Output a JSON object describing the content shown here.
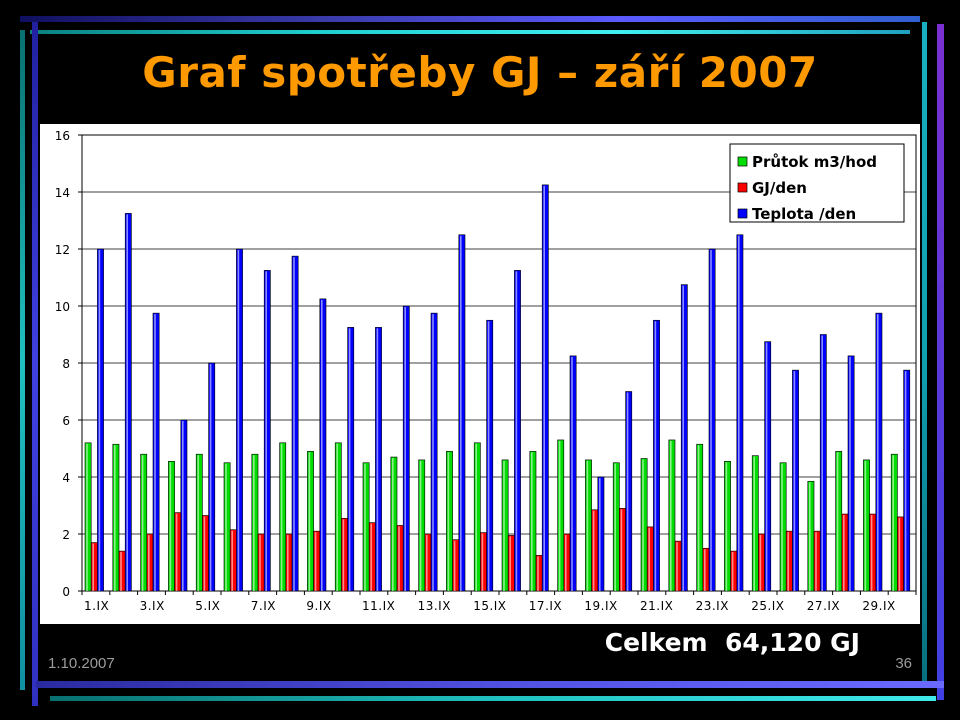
{
  "slide": {
    "title": "Graf spotřeby GJ – září 2007",
    "total": "Celkem  64,120 GJ",
    "date": "1.10.2007",
    "page_number": "36"
  },
  "colors": {
    "title": "#ff9900",
    "series": [
      "#00dd00",
      "#ff0000",
      "#0000ff"
    ]
  },
  "chart_data": {
    "type": "bar",
    "ylim": [
      0,
      16
    ],
    "yticks": [
      0,
      2,
      4,
      6,
      8,
      10,
      12,
      14,
      16
    ],
    "grid": true,
    "legend_position": "top-right",
    "categories": [
      "1.IX",
      "2.IX",
      "3.IX",
      "4.IX",
      "5.IX",
      "6.IX",
      "7.IX",
      "8.IX",
      "9.IX",
      "10.IX",
      "11.IX",
      "12.IX",
      "13.IX",
      "14.IX",
      "15.IX",
      "16.IX",
      "17.IX",
      "18.IX",
      "19.IX",
      "20.IX",
      "21.IX",
      "22.IX",
      "23.IX",
      "24.IX",
      "25.IX",
      "26.IX",
      "27.IX",
      "28.IX",
      "29.IX",
      "30.IX"
    ],
    "xtick_labels": [
      "1.IX",
      "3.IX",
      "5.IX",
      "7.IX",
      "9.IX",
      "11.IX",
      "13.IX",
      "15.IX",
      "17.IX",
      "19.IX",
      "21.IX",
      "23.IX",
      "25.IX",
      "27.IX",
      "29.IX"
    ],
    "series": [
      {
        "name": "Průtok m3/hod",
        "values": [
          5.2,
          5.15,
          4.8,
          4.55,
          4.8,
          4.5,
          4.8,
          5.2,
          4.9,
          5.2,
          4.5,
          4.7,
          4.6,
          4.9,
          5.2,
          4.6,
          4.9,
          5.3,
          4.6,
          4.5,
          4.65,
          5.3,
          5.15,
          4.55,
          4.75,
          4.5,
          3.85,
          4.9,
          4.6,
          4.8
        ]
      },
      {
        "name": "GJ/den",
        "values": [
          1.7,
          1.4,
          2.0,
          2.75,
          2.65,
          2.15,
          2.0,
          2.0,
          2.1,
          2.55,
          2.4,
          2.3,
          2.0,
          1.8,
          2.05,
          1.95,
          1.25,
          2.0,
          2.85,
          2.9,
          2.25,
          1.75,
          1.5,
          1.4,
          2.0,
          2.1,
          2.1,
          2.7,
          2.7,
          2.6
        ]
      },
      {
        "name": "Teplota /den",
        "values": [
          12.0,
          13.25,
          9.75,
          6.0,
          8.0,
          12.0,
          11.25,
          11.75,
          10.25,
          9.25,
          9.25,
          10.0,
          9.75,
          12.5,
          9.5,
          11.25,
          14.25,
          8.25,
          4.0,
          7.0,
          9.5,
          10.75,
          12.0,
          12.5,
          8.75,
          7.75,
          9.0,
          8.25,
          9.75,
          7.75
        ]
      }
    ]
  }
}
